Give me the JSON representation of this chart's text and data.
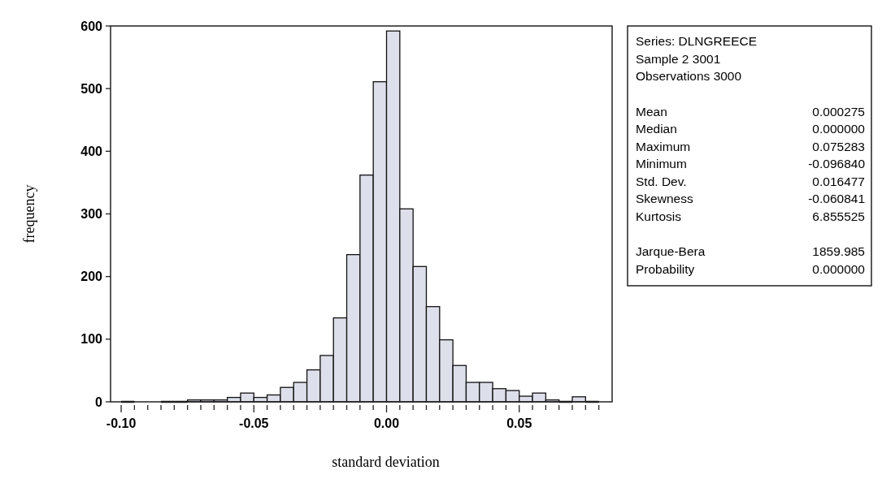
{
  "chart_data": [
    {
      "type": "histogram",
      "xlabel": "standard deviation",
      "ylabel": "frequency",
      "color": "#dde0ea",
      "bins": [
        -0.1,
        -0.095,
        -0.09,
        -0.085,
        -0.08,
        -0.075,
        -0.07,
        -0.065,
        -0.06,
        -0.055,
        -0.05,
        -0.045,
        -0.04,
        -0.035,
        -0.03,
        -0.025,
        -0.02,
        -0.015,
        -0.01,
        -0.005,
        0,
        0.005,
        0.01,
        0.015,
        0.02,
        0.025,
        0.03,
        0.035,
        0.04,
        0.045,
        0.05,
        0.055,
        0.06,
        0.065,
        0.07,
        0.075,
        0.08
      ],
      "values": [
        null,
        0,
        0,
        null,
        null,
        3,
        3,
        3,
        7,
        14,
        7,
        11,
        23,
        31,
        51,
        74,
        134,
        235,
        362,
        511,
        592,
        308,
        216,
        152,
        99,
        58,
        31,
        31,
        21,
        18,
        9,
        14,
        3,
        null,
        8,
        null
      ],
      "xlim": [
        -0.104,
        0.085
      ],
      "ylim": [
        0,
        600
      ],
      "yticks": [
        0,
        100,
        200,
        300,
        400,
        500,
        600
      ],
      "xticks": [
        {
          "value": -0.1,
          "label": "-0.10"
        },
        {
          "value": -0.095,
          "label": null
        },
        {
          "value": -0.09,
          "label": null
        },
        {
          "value": -0.085,
          "label": null
        },
        {
          "value": -0.08,
          "label": null
        },
        {
          "value": -0.075,
          "label": null
        },
        {
          "value": -0.07,
          "label": null
        },
        {
          "value": -0.065,
          "label": null
        },
        {
          "value": -0.06,
          "label": null
        },
        {
          "value": -0.055,
          "label": null
        },
        {
          "value": -0.05,
          "label": "-0.05"
        },
        {
          "value": -0.045,
          "label": null
        },
        {
          "value": -0.04,
          "label": null
        },
        {
          "value": -0.035,
          "label": null
        },
        {
          "value": -0.03,
          "label": null
        },
        {
          "value": -0.025,
          "label": null
        },
        {
          "value": -0.02,
          "label": null
        },
        {
          "value": -0.015,
          "label": null
        },
        {
          "value": -0.01,
          "label": null
        },
        {
          "value": -0.005,
          "label": null
        },
        {
          "value": 0,
          "label": "0.00"
        },
        {
          "value": 0.005,
          "label": null
        },
        {
          "value": 0.01,
          "label": null
        },
        {
          "value": 0.015,
          "label": null
        },
        {
          "value": 0.02,
          "label": null
        },
        {
          "value": 0.025,
          "label": null
        },
        {
          "value": 0.03,
          "label": null
        },
        {
          "value": 0.035,
          "label": null
        },
        {
          "value": 0.04,
          "label": null
        },
        {
          "value": 0.045,
          "label": null
        },
        {
          "value": 0.05,
          "label": "0.05"
        },
        {
          "value": 0.055,
          "label": null
        },
        {
          "value": 0.06,
          "label": null
        },
        {
          "value": 0.065,
          "label": null
        },
        {
          "value": 0.07,
          "label": null
        },
        {
          "value": 0.075,
          "label": null
        },
        {
          "value": 0.08,
          "label": null
        }
      ]
    },
    {
      "type": "other",
      "annotations": [
        "Series: DLNGREECE",
        "Sample 2 3001",
        "Observations 3000",
        "Mean\t0.000275",
        "Median\t0.000000",
        "Maximum\t0.075283",
        "Minimum\t-0.096840",
        "Std. Dev.\t0.016477",
        "Skewness\t-0.060841",
        "Kurtosis\t6.855525",
        "Jarque-Bera\t1859.985",
        "Probability\t0.000000"
      ]
    }
  ]
}
